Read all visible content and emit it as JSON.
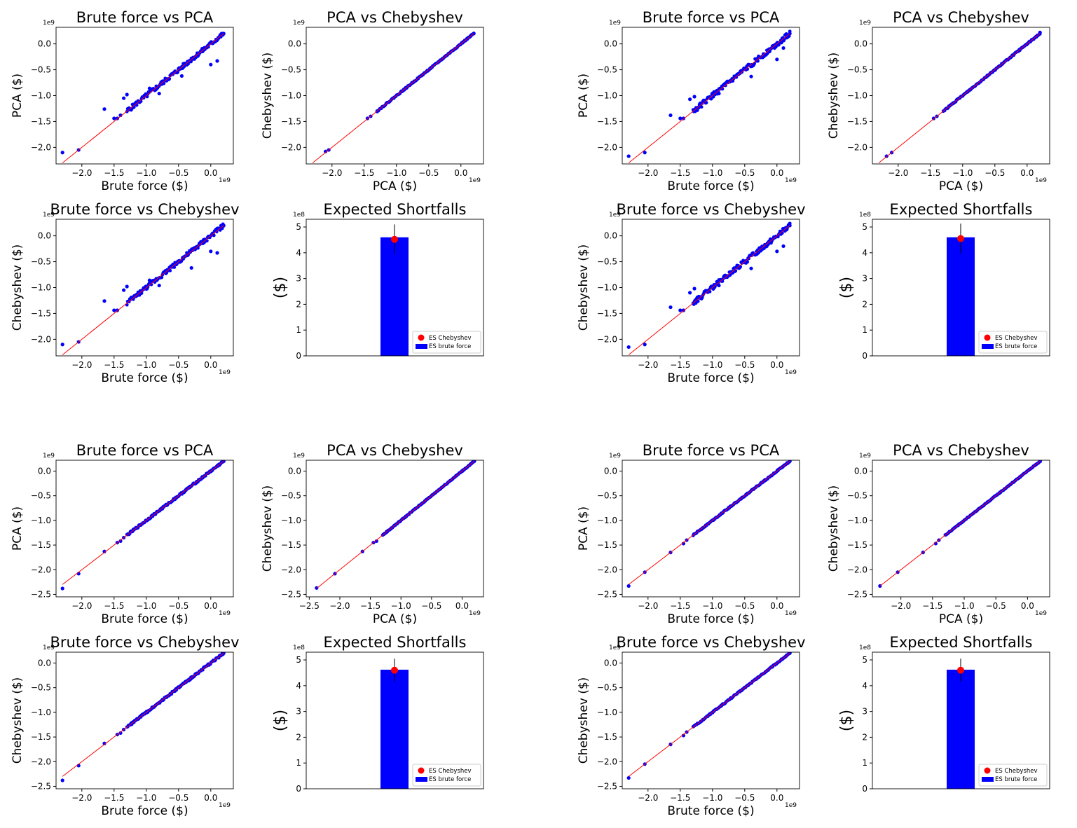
{
  "chart_data": [
    {
      "id": "p1",
      "type": "scatter",
      "title": "Brute force vs PCA",
      "xlabel": "Brute force ($)",
      "ylabel": "PCA ($)",
      "x_offset_label": "1e9",
      "y_offset_label": "1e9",
      "xlim": [
        -2.4,
        0.35
      ],
      "ylim": [
        -2.32,
        0.32
      ],
      "xticks": [
        "−2.0",
        "−1.5",
        "−1.0",
        "−0.5",
        "0.0"
      ],
      "yticks": [
        "−2.0",
        "−1.5",
        "−1.0",
        "−0.5",
        "0.0"
      ],
      "line": {
        "from": -2.3,
        "to": 0.2,
        "color": "#ff0000"
      },
      "points_color": "#0000ff",
      "points": [
        [
          -2.3,
          -2.1
        ],
        [
          -2.05,
          -2.05
        ],
        [
          -1.65,
          -1.26
        ],
        [
          -1.5,
          -1.44
        ],
        [
          -1.45,
          -1.44
        ],
        [
          -1.4,
          -1.38
        ],
        [
          -1.35,
          -1.05
        ],
        [
          -1.3,
          -0.98
        ],
        [
          -1.2,
          -1.2
        ],
        [
          -1.1,
          -1.12
        ],
        [
          -1.0,
          -0.98
        ],
        [
          -0.95,
          -0.86
        ],
        [
          -0.85,
          -0.88
        ],
        [
          -0.8,
          -0.96
        ],
        [
          -0.75,
          -0.73
        ],
        [
          -0.6,
          -0.58
        ],
        [
          -0.45,
          -0.62
        ],
        [
          -0.5,
          -0.5
        ],
        [
          -0.3,
          -0.28
        ],
        [
          -0.2,
          -0.2
        ],
        [
          -0.1,
          -0.1
        ],
        [
          0.0,
          -0.4
        ],
        [
          0.1,
          -0.33
        ],
        [
          0.15,
          0.15
        ],
        [
          0.2,
          0.2
        ]
      ],
      "dense": {
        "from": -1.3,
        "to": 0.2,
        "spread": 0.045
      }
    },
    {
      "id": "p2",
      "type": "scatter",
      "title": "PCA vs Chebyshev",
      "xlabel": "PCA ($)",
      "ylabel": "Chebyshev ($)",
      "x_offset_label": "1e9",
      "y_offset_label": "1e9",
      "xlim": [
        -2.4,
        0.35
      ],
      "ylim": [
        -2.32,
        0.32
      ],
      "xticks": [
        "−2.0",
        "−1.5",
        "−1.0",
        "−0.5",
        "0.0"
      ],
      "yticks": [
        "−2.0",
        "−1.5",
        "−1.0",
        "−0.5",
        "0.0"
      ],
      "line": {
        "from": -2.3,
        "to": 0.2,
        "color": "#ff0000"
      },
      "points_color": "#0000ff",
      "points": [
        [
          -2.1,
          -2.08
        ],
        [
          -2.05,
          -2.05
        ],
        [
          -1.45,
          -1.44
        ],
        [
          -1.4,
          -1.4
        ],
        [
          -1.3,
          -1.3
        ],
        [
          0.15,
          0.15
        ],
        [
          0.2,
          0.2
        ]
      ],
      "dense": {
        "from": -1.3,
        "to": 0.2,
        "spread": 0.012
      }
    },
    {
      "id": "p3",
      "type": "scatter",
      "title": "Brute force vs PCA",
      "xlabel": "Brute force ($)",
      "ylabel": "PCA ($)",
      "x_offset_label": "1e9",
      "y_offset_label": "1e9",
      "xlim": [
        -2.4,
        0.35
      ],
      "ylim": [
        -2.32,
        0.32
      ],
      "xticks": [
        "−2.0",
        "−1.5",
        "−1.0",
        "−0.5",
        "0.0"
      ],
      "yticks": [
        "−2.0",
        "−1.5",
        "−1.0",
        "−0.5",
        "0.0"
      ],
      "line": {
        "from": -2.3,
        "to": 0.2,
        "color": "#ff0000"
      },
      "points_color": "#0000ff",
      "points": [
        [
          -2.3,
          -2.17
        ],
        [
          -2.05,
          -2.1
        ],
        [
          -1.65,
          -1.38
        ],
        [
          -1.5,
          -1.44
        ],
        [
          -1.45,
          -1.44
        ],
        [
          -1.35,
          -1.07
        ],
        [
          -1.28,
          -1.02
        ],
        [
          -1.2,
          -1.2
        ],
        [
          -1.0,
          -0.98
        ],
        [
          -0.9,
          -0.96
        ],
        [
          -0.8,
          -0.8
        ],
        [
          -0.6,
          -0.58
        ],
        [
          -0.4,
          -0.63
        ],
        [
          -0.3,
          -0.28
        ],
        [
          -0.1,
          -0.1
        ],
        [
          0.0,
          -0.3
        ],
        [
          0.1,
          -0.08
        ],
        [
          0.15,
          0.12
        ],
        [
          0.2,
          0.2
        ]
      ],
      "dense": {
        "from": -1.3,
        "to": 0.2,
        "spread": 0.05
      }
    },
    {
      "id": "p4",
      "type": "scatter",
      "title": "PCA vs Chebyshev",
      "xlabel": "PCA ($)",
      "ylabel": "Chebyshev ($)",
      "x_offset_label": "1e9",
      "y_offset_label": "1e9",
      "xlim": [
        -2.4,
        0.35
      ],
      "ylim": [
        -2.32,
        0.32
      ],
      "xticks": [
        "−2.0",
        "−1.5",
        "−1.0",
        "−0.5",
        "0.0"
      ],
      "yticks": [
        "−2.0",
        "−1.5",
        "−1.0",
        "−0.5",
        "0.0"
      ],
      "line": {
        "from": -2.3,
        "to": 0.2,
        "color": "#ff0000"
      },
      "points_color": "#0000ff",
      "points": [
        [
          -2.18,
          -2.17
        ],
        [
          -2.1,
          -2.1
        ],
        [
          -1.45,
          -1.44
        ],
        [
          -1.4,
          -1.4
        ],
        [
          0.15,
          0.15
        ],
        [
          0.2,
          0.22
        ]
      ],
      "dense": {
        "from": -1.3,
        "to": 0.2,
        "spread": 0.012
      }
    },
    {
      "id": "p5",
      "type": "scatter",
      "title": "Brute force vs Chebyshev",
      "xlabel": "Brute force ($)",
      "ylabel": "Chebyshev ($)",
      "x_offset_label": "1e9",
      "y_offset_label": "1e9",
      "xlim": [
        -2.4,
        0.35
      ],
      "ylim": [
        -2.32,
        0.32
      ],
      "xticks": [
        "−2.0",
        "−1.5",
        "−1.0",
        "−0.5",
        "0.0"
      ],
      "yticks": [
        "−2.0",
        "−1.5",
        "−1.0",
        "−0.5",
        "0.0"
      ],
      "line": {
        "from": -2.3,
        "to": 0.2,
        "color": "#ff0000"
      },
      "points_color": "#0000ff",
      "points": [
        [
          -2.3,
          -2.1
        ],
        [
          -2.05,
          -2.05
        ],
        [
          -1.65,
          -1.26
        ],
        [
          -1.5,
          -1.44
        ],
        [
          -1.45,
          -1.44
        ],
        [
          -1.35,
          -1.05
        ],
        [
          -1.3,
          -0.98
        ],
        [
          -1.2,
          -1.2
        ],
        [
          -1.0,
          -0.98
        ],
        [
          -0.95,
          -0.86
        ],
        [
          -0.8,
          -0.96
        ],
        [
          -0.6,
          -0.58
        ],
        [
          -0.3,
          -0.62
        ],
        [
          -0.3,
          -0.28
        ],
        [
          -0.1,
          -0.1
        ],
        [
          0.0,
          -0.3
        ],
        [
          0.1,
          -0.33
        ],
        [
          0.15,
          0.15
        ],
        [
          0.2,
          0.2
        ]
      ],
      "dense": {
        "from": -1.3,
        "to": 0.2,
        "spread": 0.045
      }
    },
    {
      "id": "p6",
      "type": "bar",
      "title": "Expected Shortfalls",
      "ylabel": "($)",
      "y_offset_label": "1e8",
      "ylim": [
        0,
        5.3
      ],
      "yticks": [
        "0",
        "1",
        "2",
        "3",
        "4",
        "5"
      ],
      "bar": {
        "value": 4.6,
        "color": "#0000ff",
        "label": "ES brute force"
      },
      "marker": {
        "value": 4.52,
        "err": 0.58,
        "color": "#ff0000",
        "label": "ES Chebyshev"
      }
    },
    {
      "id": "p7",
      "type": "scatter",
      "title": "Brute force vs Chebyshev",
      "xlabel": "Brute force ($)",
      "ylabel": "Chebyshev ($)",
      "x_offset_label": "1e9",
      "y_offset_label": "1e9",
      "xlim": [
        -2.4,
        0.35
      ],
      "ylim": [
        -2.32,
        0.32
      ],
      "xticks": [
        "−2.0",
        "−1.5",
        "−1.0",
        "−0.5",
        "0.0"
      ],
      "yticks": [
        "−2.0",
        "−1.5",
        "−1.0",
        "−0.5",
        "0.0"
      ],
      "line": {
        "from": -2.3,
        "to": 0.2,
        "color": "#ff0000"
      },
      "points_color": "#0000ff",
      "points": [
        [
          -2.3,
          -2.15
        ],
        [
          -2.05,
          -2.1
        ],
        [
          -1.65,
          -1.38
        ],
        [
          -1.5,
          -1.44
        ],
        [
          -1.45,
          -1.44
        ],
        [
          -1.35,
          -1.1
        ],
        [
          -1.28,
          -1.02
        ],
        [
          -1.2,
          -1.2
        ],
        [
          -1.0,
          -0.98
        ],
        [
          -0.9,
          -0.96
        ],
        [
          -0.8,
          -0.8
        ],
        [
          -0.6,
          -0.58
        ],
        [
          -0.4,
          -0.63
        ],
        [
          -0.3,
          -0.28
        ],
        [
          -0.1,
          -0.1
        ],
        [
          0.0,
          -0.3
        ],
        [
          0.1,
          -0.2
        ],
        [
          0.15,
          0.12
        ],
        [
          0.2,
          0.2
        ]
      ],
      "dense": {
        "from": -1.3,
        "to": 0.2,
        "spread": 0.05
      }
    },
    {
      "id": "p8",
      "type": "bar",
      "title": "Expected Shortfalls",
      "ylabel": "($)",
      "y_offset_label": "1e8",
      "ylim": [
        0,
        5.3
      ],
      "yticks": [
        "0",
        "1",
        "2",
        "3",
        "4",
        "5"
      ],
      "bar": {
        "value": 4.6,
        "color": "#0000ff",
        "label": "ES brute force"
      },
      "marker": {
        "value": 4.55,
        "err": 0.58,
        "color": "#ff0000",
        "label": "ES Chebyshev"
      }
    },
    {
      "id": "p9",
      "type": "scatter",
      "title": "Brute force vs PCA",
      "xlabel": "Brute force ($)",
      "ylabel": "PCA ($)",
      "x_offset_label": "1e9",
      "y_offset_label": "1e9",
      "xlim": [
        -2.4,
        0.35
      ],
      "ylim": [
        -2.55,
        0.22
      ],
      "xticks": [
        "−2.0",
        "−1.5",
        "−1.0",
        "−0.5",
        "0.0"
      ],
      "yticks": [
        "−2.5",
        "−2.0",
        "−1.5",
        "−1.0",
        "−0.5",
        "0.0"
      ],
      "line": {
        "from": -2.3,
        "to": 0.2,
        "color": "#ff0000"
      },
      "points_color": "#0000ff",
      "points": [
        [
          -2.3,
          -2.38
        ],
        [
          -2.05,
          -2.08
        ],
        [
          -1.65,
          -1.63
        ],
        [
          -1.45,
          -1.45
        ],
        [
          -1.4,
          -1.42
        ],
        [
          -1.35,
          -1.35
        ],
        [
          0.15,
          0.15
        ],
        [
          0.2,
          0.2
        ]
      ],
      "dense": {
        "from": -1.3,
        "to": 0.2,
        "spread": 0.02
      }
    },
    {
      "id": "p10",
      "type": "scatter",
      "title": "PCA vs Chebyshev",
      "xlabel": "PCA ($)",
      "ylabel": "Chebyshev ($)",
      "x_offset_label": "1e9",
      "y_offset_label": "1e9",
      "xlim": [
        -2.55,
        0.35
      ],
      "ylim": [
        -2.55,
        0.22
      ],
      "xticks": [
        "−2.5",
        "−2.0",
        "−1.5",
        "−1.0",
        "−0.5",
        "0.0"
      ],
      "yticks": [
        "−2.5",
        "−2.0",
        "−1.5",
        "−1.0",
        "−0.5",
        "0.0"
      ],
      "line": {
        "from": -2.38,
        "to": 0.2,
        "color": "#ff0000"
      },
      "points_color": "#0000ff",
      "points": [
        [
          -2.38,
          -2.37
        ],
        [
          -2.08,
          -2.08
        ],
        [
          -1.63,
          -1.63
        ],
        [
          -1.45,
          -1.45
        ],
        [
          -1.4,
          -1.42
        ],
        [
          0.15,
          0.15
        ],
        [
          0.2,
          0.2
        ]
      ],
      "dense": {
        "from": -1.3,
        "to": 0.2,
        "spread": 0.01
      }
    },
    {
      "id": "p11",
      "type": "scatter",
      "title": "Brute force vs PCA",
      "xlabel": "Brute force ($)",
      "ylabel": "PCA ($)",
      "x_offset_label": "1e9",
      "y_offset_label": "1e9",
      "xlim": [
        -2.4,
        0.35
      ],
      "ylim": [
        -2.55,
        0.22
      ],
      "xticks": [
        "−2.0",
        "−1.5",
        "−1.0",
        "−0.5",
        "0.0"
      ],
      "yticks": [
        "−2.5",
        "−2.0",
        "−1.5",
        "−1.0",
        "−0.5",
        "0.0"
      ],
      "line": {
        "from": -2.3,
        "to": 0.2,
        "color": "#ff0000"
      },
      "points_color": "#0000ff",
      "points": [
        [
          -2.3,
          -2.33
        ],
        [
          -2.05,
          -2.05
        ],
        [
          -1.65,
          -1.65
        ],
        [
          -1.45,
          -1.47
        ],
        [
          -1.4,
          -1.4
        ],
        [
          0.15,
          0.15
        ],
        [
          0.2,
          0.2
        ]
      ],
      "dense": {
        "from": -1.3,
        "to": 0.2,
        "spread": 0.012
      }
    },
    {
      "id": "p12",
      "type": "scatter",
      "title": "PCA vs Chebyshev",
      "xlabel": "PCA ($)",
      "ylabel": "Chebyshev ($)",
      "x_offset_label": "1e9",
      "y_offset_label": "1e9",
      "xlim": [
        -2.45,
        0.35
      ],
      "ylim": [
        -2.55,
        0.22
      ],
      "xticks": [
        "−2.0",
        "−1.5",
        "−1.0",
        "−0.5",
        "0.0"
      ],
      "yticks": [
        "−2.5",
        "−2.0",
        "−1.5",
        "−1.0",
        "−0.5",
        "0.0"
      ],
      "line": {
        "from": -2.33,
        "to": 0.2,
        "color": "#ff0000"
      },
      "points_color": "#0000ff",
      "points": [
        [
          -2.33,
          -2.33
        ],
        [
          -2.05,
          -2.05
        ],
        [
          -1.65,
          -1.65
        ],
        [
          -1.45,
          -1.47
        ],
        [
          -1.4,
          -1.4
        ],
        [
          0.15,
          0.15
        ],
        [
          0.2,
          0.2
        ]
      ],
      "dense": {
        "from": -1.3,
        "to": 0.2,
        "spread": 0.008
      }
    },
    {
      "id": "p13",
      "type": "scatter",
      "title": "Brute force vs Chebyshev",
      "xlabel": "Brute force ($)",
      "ylabel": "Chebyshev ($)",
      "x_offset_label": "1e9",
      "y_offset_label": "1e9",
      "xlim": [
        -2.4,
        0.35
      ],
      "ylim": [
        -2.55,
        0.22
      ],
      "xticks": [
        "−2.0",
        "−1.5",
        "−1.0",
        "−0.5",
        "0.0"
      ],
      "yticks": [
        "−2.5",
        "−2.0",
        "−1.5",
        "−1.0",
        "−0.5",
        "0.0"
      ],
      "line": {
        "from": -2.3,
        "to": 0.2,
        "color": "#ff0000"
      },
      "points_color": "#0000ff",
      "points": [
        [
          -2.3,
          -2.38
        ],
        [
          -2.05,
          -2.08
        ],
        [
          -1.65,
          -1.63
        ],
        [
          -1.45,
          -1.45
        ],
        [
          -1.4,
          -1.42
        ],
        [
          -1.35,
          -1.35
        ],
        [
          0.15,
          0.15
        ],
        [
          0.2,
          0.2
        ]
      ],
      "dense": {
        "from": -1.3,
        "to": 0.2,
        "spread": 0.02
      }
    },
    {
      "id": "p14",
      "type": "bar",
      "title": "Expected Shortfalls",
      "ylabel": "($)",
      "y_offset_label": "1e8",
      "ylim": [
        0,
        5.3
      ],
      "yticks": [
        "0",
        "1",
        "2",
        "3",
        "4",
        "5"
      ],
      "bar": {
        "value": 4.62,
        "color": "#0000ff",
        "label": "ES brute force"
      },
      "marker": {
        "value": 4.6,
        "err": 0.45,
        "color": "#ff0000",
        "label": "ES Chebyshev"
      }
    },
    {
      "id": "p15",
      "type": "scatter",
      "title": "Brute force vs Chebyshev",
      "xlabel": "Brute force ($)",
      "ylabel": "Chebyshev ($)",
      "x_offset_label": "1e9",
      "y_offset_label": "1e9",
      "xlim": [
        -2.4,
        0.35
      ],
      "ylim": [
        -2.55,
        0.22
      ],
      "xticks": [
        "−2.0",
        "−1.5",
        "−1.0",
        "−0.5",
        "0.0"
      ],
      "yticks": [
        "−2.5",
        "−2.0",
        "−1.5",
        "−1.0",
        "−0.5",
        "0.0"
      ],
      "line": {
        "from": -2.3,
        "to": 0.2,
        "color": "#ff0000"
      },
      "points_color": "#0000ff",
      "points": [
        [
          -2.3,
          -2.33
        ],
        [
          -2.05,
          -2.05
        ],
        [
          -1.65,
          -1.65
        ],
        [
          -1.45,
          -1.47
        ],
        [
          -1.4,
          -1.4
        ],
        [
          0.15,
          0.15
        ],
        [
          0.2,
          0.2
        ]
      ],
      "dense": {
        "from": -1.3,
        "to": 0.2,
        "spread": 0.012
      }
    },
    {
      "id": "p16",
      "type": "bar",
      "title": "Expected Shortfalls",
      "ylabel": "($)",
      "y_offset_label": "1e8",
      "ylim": [
        0,
        5.3
      ],
      "yticks": [
        "0",
        "1",
        "2",
        "3",
        "4",
        "5"
      ],
      "bar": {
        "value": 4.62,
        "color": "#0000ff",
        "label": "ES brute force"
      },
      "marker": {
        "value": 4.6,
        "err": 0.45,
        "color": "#ff0000",
        "label": "ES Chebyshev"
      }
    }
  ]
}
